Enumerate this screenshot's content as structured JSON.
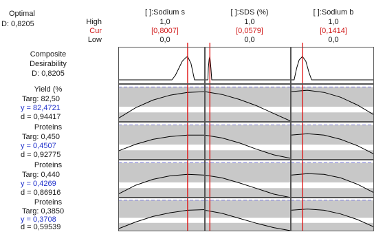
{
  "header": {
    "optimal_label": "Optimal",
    "d_label": "D: 0,8205",
    "row_high": "High",
    "row_cur": "Cur",
    "row_low": "Low"
  },
  "factors": [
    {
      "name": "[ ]:Sodium s",
      "high": "1,0",
      "cur": "[0,8007]",
      "low": "0,0",
      "cur_value": 0.8007
    },
    {
      "name": "[ ]:SDS (%)",
      "high": "1,0",
      "cur": "[0,0579]",
      "low": "0,0",
      "cur_value": 0.0579
    },
    {
      "name": "[ ]:Sodium b",
      "high": "1,0",
      "cur": "[0,1414]",
      "low": "0,0",
      "cur_value": 0.1414
    }
  ],
  "responses": [
    {
      "kind": "composite",
      "lines": [
        "Composite",
        "Desirability",
        "D: 0,8205"
      ]
    },
    {
      "kind": "response",
      "name": "Yield (%",
      "targ": "Targ: 82,50",
      "y": "y = 82,4721",
      "d": "d = 0,94417"
    },
    {
      "kind": "response",
      "name": "Proteins",
      "targ": "Targ: 0,450",
      "y": "y = 0,4507",
      "d": "d = 0,92775"
    },
    {
      "kind": "response",
      "name": "Proteins",
      "targ": "Targ: 0,440",
      "y": "y = 0,4269",
      "d": "d = 0,86916"
    },
    {
      "kind": "response",
      "name": "Proteins",
      "targ": "Targ: 0,3850",
      "y": "y = 0,3708",
      "d": "d = 0,59539"
    }
  ],
  "chart_data": {
    "type": "line",
    "title": "",
    "x_range": [
      0,
      1
    ],
    "colors": {
      "current": "#e01010",
      "target": "#7b7bd6",
      "curve": "#000000",
      "band": "#c8c8c8",
      "frame": "#555555"
    },
    "panels": [
      {
        "row": "Composite Desirability",
        "series": [
          {
            "x": [
              0,
              0.62,
              0.66,
              0.7,
              0.74,
              0.78,
              0.8,
              0.84,
              0.88,
              1.0
            ],
            "y": [
              0,
              0,
              0.2,
              0.5,
              0.8,
              0.95,
              1.0,
              0.7,
              0,
              0
            ]
          },
          {
            "x": [
              0,
              0.035,
              0.04,
              0.05,
              0.058,
              0.07,
              0.08,
              1.0
            ],
            "y": [
              0,
              0,
              0.5,
              0.9,
              1.0,
              0.5,
              0,
              0
            ]
          },
          {
            "x": [
              0,
              0.04,
              0.07,
              0.1,
              0.14,
              0.18,
              0.22,
              0.25,
              1.0
            ],
            "y": [
              0,
              0,
              0.5,
              0.85,
              1.0,
              0.8,
              0.3,
              0,
              0
            ]
          }
        ]
      },
      {
        "row": "Yield",
        "series": [
          {
            "x": [
              0,
              0.2,
              0.4,
              0.6,
              0.8,
              1.0
            ],
            "y": [
              0.1,
              0.4,
              0.62,
              0.76,
              0.84,
              0.86
            ]
          },
          {
            "x": [
              0,
              0.2,
              0.4,
              0.6,
              0.8,
              1.0
            ],
            "y": [
              0.86,
              0.78,
              0.64,
              0.46,
              0.24,
              0.02
            ]
          },
          {
            "x": [
              0,
              0.2,
              0.4,
              0.6,
              0.8,
              1.0
            ],
            "y": [
              0.86,
              0.9,
              0.84,
              0.7,
              0.48,
              0.2
            ]
          }
        ]
      },
      {
        "row": "Proteins 1",
        "series": [
          {
            "x": [
              0,
              0.2,
              0.4,
              0.6,
              0.8,
              1.0
            ],
            "y": [
              0.25,
              0.44,
              0.58,
              0.66,
              0.7,
              0.7
            ]
          },
          {
            "x": [
              0,
              0.2,
              0.4,
              0.6,
              0.8,
              1.0
            ],
            "y": [
              0.7,
              0.62,
              0.48,
              0.3,
              0.14,
              0.04
            ]
          },
          {
            "x": [
              0,
              0.2,
              0.4,
              0.6,
              0.8,
              1.0
            ],
            "y": [
              0.7,
              0.74,
              0.7,
              0.58,
              0.4,
              0.16
            ]
          }
        ]
      },
      {
        "row": "Proteins 2",
        "series": [
          {
            "x": [
              0,
              0.2,
              0.4,
              0.6,
              0.8,
              1.0
            ],
            "y": [
              0.1,
              0.35,
              0.52,
              0.62,
              0.66,
              0.64
            ]
          },
          {
            "x": [
              0,
              0.2,
              0.4,
              0.6,
              0.8,
              1.0
            ],
            "y": [
              0.64,
              0.56,
              0.42,
              0.26,
              0.1,
              0.0
            ]
          },
          {
            "x": [
              0,
              0.2,
              0.4,
              0.6,
              0.8,
              1.0
            ],
            "y": [
              0.64,
              0.68,
              0.66,
              0.56,
              0.38,
              0.14
            ]
          }
        ]
      },
      {
        "row": "Proteins 3",
        "series": [
          {
            "x": [
              0,
              0.2,
              0.4,
              0.6,
              0.8,
              1.0
            ],
            "y": [
              0.08,
              0.3,
              0.48,
              0.6,
              0.68,
              0.7
            ]
          },
          {
            "x": [
              0,
              0.2,
              0.4,
              0.6,
              0.8,
              1.0
            ],
            "y": [
              0.68,
              0.58,
              0.42,
              0.26,
              0.12,
              0.02
            ]
          },
          {
            "x": [
              0,
              0.2,
              0.4,
              0.6,
              0.8,
              1.0
            ],
            "y": [
              0.68,
              0.72,
              0.68,
              0.56,
              0.38,
              0.14
            ]
          }
        ]
      }
    ]
  }
}
